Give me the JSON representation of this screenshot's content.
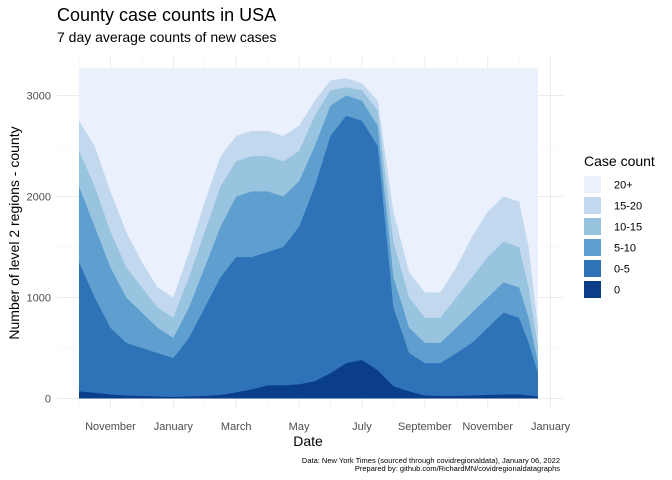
{
  "chart_data": {
    "type": "area",
    "stacked": true,
    "title": "County case counts in USA",
    "subtitle": "7 day average counts of new cases",
    "xlabel": "Date",
    "ylabel": "Number of level 2 regions - county",
    "ylim": [
      0,
      3270
    ],
    "y_ticks": [
      0,
      1000,
      2000,
      3000
    ],
    "x_range": [
      0,
      14.6
    ],
    "x_ticks": [
      {
        "label": "November",
        "pos": 1
      },
      {
        "label": "January",
        "pos": 3
      },
      {
        "label": "March",
        "pos": 5
      },
      {
        "label": "May",
        "pos": 7
      },
      {
        "label": "July",
        "pos": 9
      },
      {
        "label": "September",
        "pos": 11
      },
      {
        "label": "November",
        "pos": 13
      },
      {
        "label": "January",
        "pos": 15
      }
    ],
    "x_unit": "months since start of October 2020",
    "legend_title": "Case count",
    "legend_position": "right",
    "series": [
      {
        "name": "20+",
        "color": "#eaf1fc"
      },
      {
        "name": "15-20",
        "color": "#c1d8ee"
      },
      {
        "name": "10-15",
        "color": "#98c4e0"
      },
      {
        "name": "5-10",
        "color": "#5e9fd0"
      },
      {
        "name": "0-5",
        "color": "#2e72b8"
      },
      {
        "name": "0",
        "color": "#0a3e8a"
      }
    ],
    "x": [
      0,
      0.5,
      1,
      1.5,
      2,
      2.5,
      3,
      3.5,
      4,
      4.5,
      5,
      5.5,
      6,
      6.5,
      7,
      7.5,
      8,
      8.5,
      9,
      9.5,
      10,
      10.5,
      11,
      11.5,
      12,
      12.5,
      13,
      13.5,
      14,
      14.3,
      14.6
    ],
    "cumulative_tops": [
      {
        "name": "0",
        "values": [
          70,
          55,
          40,
          30,
          25,
          20,
          15,
          20,
          25,
          35,
          60,
          90,
          130,
          130,
          140,
          170,
          250,
          350,
          380,
          280,
          120,
          70,
          30,
          25,
          25,
          30,
          35,
          40,
          40,
          30,
          20
        ]
      },
      {
        "name": "0-5",
        "values": [
          1350,
          1000,
          700,
          550,
          500,
          450,
          400,
          600,
          900,
          1200,
          1400,
          1400,
          1450,
          1500,
          1700,
          2100,
          2600,
          2800,
          2750,
          2500,
          900,
          450,
          350,
          350,
          450,
          550,
          700,
          850,
          800,
          550,
          250
        ]
      },
      {
        "name": "5-10",
        "values": [
          2100,
          1700,
          1300,
          1000,
          850,
          700,
          600,
          900,
          1300,
          1700,
          2000,
          2050,
          2050,
          2000,
          2150,
          2500,
          2900,
          3000,
          2950,
          2700,
          1200,
          700,
          550,
          550,
          700,
          850,
          1000,
          1150,
          1100,
          800,
          350
        ]
      },
      {
        "name": "10-15",
        "values": [
          2450,
          2100,
          1650,
          1300,
          1100,
          900,
          800,
          1200,
          1650,
          2100,
          2350,
          2400,
          2400,
          2350,
          2450,
          2800,
          3050,
          3080,
          3050,
          2850,
          1550,
          1000,
          800,
          800,
          1000,
          1200,
          1400,
          1550,
          1500,
          1100,
          500
        ]
      },
      {
        "name": "15-20",
        "values": [
          2750,
          2500,
          2050,
          1650,
          1350,
          1100,
          1000,
          1450,
          1950,
          2400,
          2600,
          2650,
          2650,
          2600,
          2700,
          2950,
          3150,
          3170,
          3120,
          2950,
          1850,
          1250,
          1050,
          1050,
          1300,
          1600,
          1850,
          2000,
          1950,
          1500,
          700
        ]
      },
      {
        "name": "20+",
        "values": [
          3270,
          3270,
          3270,
          3270,
          3270,
          3270,
          3270,
          3270,
          3270,
          3270,
          3270,
          3270,
          3270,
          3270,
          3270,
          3270,
          3270,
          3270,
          3270,
          3270,
          3270,
          3270,
          3270,
          3270,
          3270,
          3270,
          3270,
          3270,
          3270,
          3270,
          3270
        ]
      }
    ]
  },
  "legend": {
    "items": [
      {
        "label": "20+",
        "color": "#eaf1fc"
      },
      {
        "label": "15-20",
        "color": "#c1d8ee"
      },
      {
        "label": "10-15",
        "color": "#98c4e0"
      },
      {
        "label": "5-10",
        "color": "#5e9fd0"
      },
      {
        "label": "0-5",
        "color": "#2e72b8"
      },
      {
        "label": "0",
        "color": "#0a3e8a"
      }
    ]
  },
  "caption": {
    "line1": "Data: New York Times (sourced through covidregionaldata), January 06, 2022",
    "line2": "Prepared by: github.com/RichardMN/covidregionaldatagraphs"
  }
}
